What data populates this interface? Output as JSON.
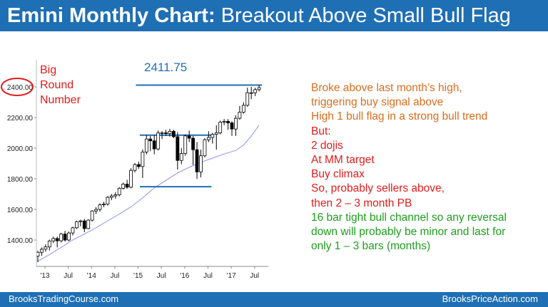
{
  "header": {
    "title_bold": "Emini Monthly Chart:",
    "title_rest": " Breakout Above Small Bull Flag"
  },
  "footer": {
    "left": "BrooksTradingCourse.com",
    "right": "BrooksPriceAction.com"
  },
  "colors": {
    "header_bg": "#1f6fb5",
    "orange_text": "#d96d1e",
    "red_text": "#e11c1c",
    "green_text": "#1e9e1e",
    "level_line": "#1f6fb5",
    "moving_average": "#8f8ff0",
    "candle": "#000000"
  },
  "annotations": {
    "round_number": [
      "Big",
      "Round",
      "Number"
    ],
    "level_label": "2411.75",
    "notes": [
      {
        "text": "Broke above last month’s high,",
        "color": "orange"
      },
      {
        "text": "triggering buy signal above",
        "color": "orange"
      },
      {
        "text": "High 1 bull flag in a strong bull trend",
        "color": "orange"
      },
      {
        "text": "But:",
        "color": "red"
      },
      {
        "text": "2 dojis",
        "color": "red"
      },
      {
        "text": "At MM target",
        "color": "red"
      },
      {
        "text": "Buy climax",
        "color": "red"
      },
      {
        "text": "So, probably sellers above,",
        "color": "red"
      },
      {
        "text": "then 2 – 3  month PB",
        "color": "red"
      },
      {
        "text": "16 bar tight bull channel so any reversal",
        "color": "green"
      },
      {
        "text": "down will probably be minor and last for",
        "color": "green"
      },
      {
        "text": "only 1 – 3 bars (months)",
        "color": "green"
      }
    ]
  },
  "chart_data": {
    "type": "candlestick",
    "y_ticks": [
      "1400.00",
      "1600.00",
      "1800.00",
      "2000.00",
      "2200.00",
      "2400.00"
    ],
    "highlighted_tick": "2400.00",
    "x_ticks": [
      "'13",
      "Jul",
      "'14",
      "Jul",
      "'15",
      "Jul",
      "'16",
      "Jul",
      "'17",
      "Jul"
    ],
    "ylim": [
      1240,
      2550
    ],
    "candles": [
      {
        "o": 1295,
        "h": 1330,
        "l": 1255,
        "c": 1320
      },
      {
        "o": 1320,
        "h": 1352,
        "l": 1297,
        "c": 1340
      },
      {
        "o": 1340,
        "h": 1372,
        "l": 1324,
        "c": 1355
      },
      {
        "o": 1355,
        "h": 1403,
        "l": 1332,
        "c": 1394
      },
      {
        "o": 1394,
        "h": 1422,
        "l": 1380,
        "c": 1410
      },
      {
        "o": 1410,
        "h": 1422,
        "l": 1352,
        "c": 1395
      },
      {
        "o": 1395,
        "h": 1447,
        "l": 1385,
        "c": 1439
      },
      {
        "o": 1439,
        "h": 1460,
        "l": 1390,
        "c": 1400
      },
      {
        "o": 1400,
        "h": 1455,
        "l": 1392,
        "c": 1446
      },
      {
        "o": 1446,
        "h": 1487,
        "l": 1430,
        "c": 1480
      },
      {
        "o": 1480,
        "h": 1526,
        "l": 1472,
        "c": 1520
      },
      {
        "o": 1520,
        "h": 1533,
        "l": 1490,
        "c": 1525
      },
      {
        "o": 1525,
        "h": 1538,
        "l": 1451,
        "c": 1475
      },
      {
        "o": 1475,
        "h": 1536,
        "l": 1470,
        "c": 1530
      },
      {
        "o": 1530,
        "h": 1595,
        "l": 1520,
        "c": 1590
      },
      {
        "o": 1590,
        "h": 1615,
        "l": 1570,
        "c": 1600
      },
      {
        "o": 1600,
        "h": 1640,
        "l": 1585,
        "c": 1630
      },
      {
        "o": 1630,
        "h": 1650,
        "l": 1615,
        "c": 1635
      },
      {
        "o": 1635,
        "h": 1688,
        "l": 1625,
        "c": 1679
      },
      {
        "o": 1679,
        "h": 1700,
        "l": 1660,
        "c": 1688
      },
      {
        "o": 1688,
        "h": 1712,
        "l": 1670,
        "c": 1695
      },
      {
        "o": 1695,
        "h": 1745,
        "l": 1685,
        "c": 1738
      },
      {
        "o": 1738,
        "h": 1775,
        "l": 1730,
        "c": 1765
      },
      {
        "o": 1765,
        "h": 1793,
        "l": 1735,
        "c": 1745
      },
      {
        "o": 1745,
        "h": 1869,
        "l": 1738,
        "c": 1855
      },
      {
        "o": 1855,
        "h": 1903,
        "l": 1842,
        "c": 1893
      },
      {
        "o": 1893,
        "h": 1912,
        "l": 1865,
        "c": 1880
      },
      {
        "o": 1880,
        "h": 1992,
        "l": 1805,
        "c": 1975
      },
      {
        "o": 1975,
        "h": 2085,
        "l": 1960,
        "c": 2060
      },
      {
        "o": 2060,
        "h": 2080,
        "l": 1980,
        "c": 2048
      },
      {
        "o": 2048,
        "h": 2085,
        "l": 1960,
        "c": 1995
      },
      {
        "o": 1995,
        "h": 2115,
        "l": 1985,
        "c": 2100
      },
      {
        "o": 2100,
        "h": 2111,
        "l": 2060,
        "c": 2100
      },
      {
        "o": 2100,
        "h": 2120,
        "l": 2080,
        "c": 2095
      },
      {
        "o": 2095,
        "h": 2126,
        "l": 2075,
        "c": 2110
      },
      {
        "o": 2110,
        "h": 2121,
        "l": 2065,
        "c": 2075
      },
      {
        "o": 2075,
        "h": 2105,
        "l": 1860,
        "c": 1920
      },
      {
        "o": 1920,
        "h": 2000,
        "l": 1895,
        "c": 1965
      },
      {
        "o": 1965,
        "h": 2090,
        "l": 1950,
        "c": 2080
      },
      {
        "o": 2080,
        "h": 2115,
        "l": 2040,
        "c": 2065
      },
      {
        "o": 2065,
        "h": 2080,
        "l": 1890,
        "c": 1990
      },
      {
        "o": 1990,
        "h": 2040,
        "l": 1800,
        "c": 1845
      },
      {
        "o": 1845,
        "h": 1990,
        "l": 1810,
        "c": 1950
      },
      {
        "o": 1950,
        "h": 2065,
        "l": 1940,
        "c": 2055
      },
      {
        "o": 2055,
        "h": 2110,
        "l": 2040,
        "c": 2070
      },
      {
        "o": 2070,
        "h": 2100,
        "l": 2030,
        "c": 2090
      },
      {
        "o": 2090,
        "h": 2150,
        "l": 1990,
        "c": 2100
      },
      {
        "o": 2100,
        "h": 2180,
        "l": 2090,
        "c": 2170
      },
      {
        "o": 2170,
        "h": 2190,
        "l": 2150,
        "c": 2175
      },
      {
        "o": 2175,
        "h": 2190,
        "l": 2120,
        "c": 2165
      },
      {
        "o": 2165,
        "h": 2175,
        "l": 2080,
        "c": 2125
      },
      {
        "o": 2125,
        "h": 2215,
        "l": 2080,
        "c": 2195
      },
      {
        "o": 2195,
        "h": 2275,
        "l": 2185,
        "c": 2235
      },
      {
        "o": 2235,
        "h": 2300,
        "l": 2225,
        "c": 2280
      },
      {
        "o": 2280,
        "h": 2395,
        "l": 2270,
        "c": 2362
      },
      {
        "o": 2362,
        "h": 2400,
        "l": 2320,
        "c": 2362
      },
      {
        "o": 2362,
        "h": 2395,
        "l": 2340,
        "c": 2382
      },
      {
        "o": 2382,
        "h": 2411.75,
        "l": 2370,
        "c": 2395
      }
    ],
    "moving_average": [
      [
        0,
        1262
      ],
      [
        3,
        1305
      ],
      [
        6,
        1352
      ],
      [
        9,
        1400
      ],
      [
        12,
        1440
      ],
      [
        15,
        1480
      ],
      [
        18,
        1525
      ],
      [
        21,
        1570
      ],
      [
        24,
        1617
      ],
      [
        27,
        1675
      ],
      [
        30,
        1740
      ],
      [
        33,
        1790
      ],
      [
        36,
        1838
      ],
      [
        39,
        1875
      ],
      [
        42,
        1908
      ],
      [
        45,
        1935
      ],
      [
        48,
        1962
      ],
      [
        51,
        1985
      ],
      [
        53,
        2020
      ],
      [
        55,
        2080
      ],
      [
        57,
        2150
      ]
    ],
    "horizontal_levels": [
      {
        "name": "flag-top",
        "value": 2085,
        "from": 27,
        "to": 44
      },
      {
        "name": "flag-bottom",
        "value": 1748,
        "from": 27,
        "to": 44
      },
      {
        "name": "high",
        "value": 2411.75,
        "from": 26,
        "to": 57
      }
    ]
  }
}
